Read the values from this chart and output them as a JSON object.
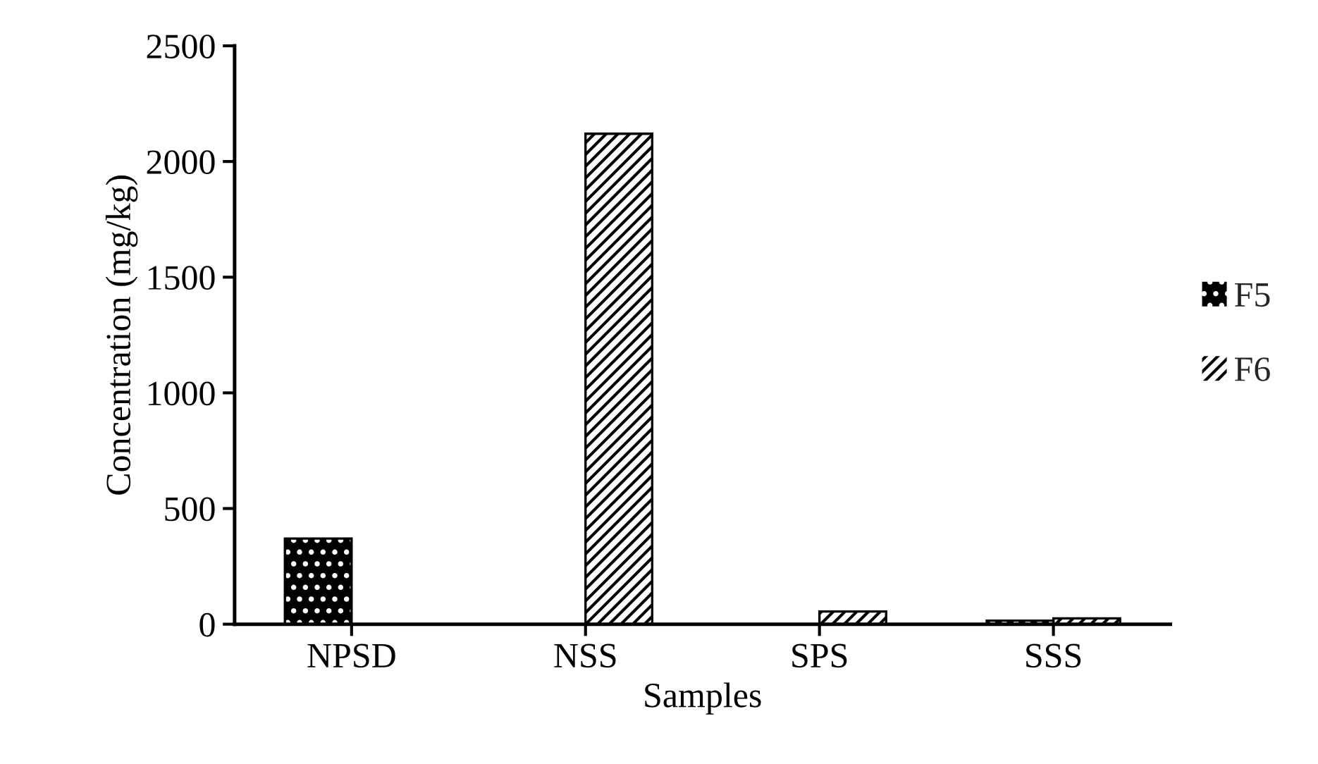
{
  "chart_data": {
    "type": "bar",
    "xlabel": "Samples",
    "ylabel": "Concentration (mg/kg)",
    "categories": [
      "NPSD",
      "NSS",
      "SPS",
      "SSS"
    ],
    "series": [
      {
        "name": "F5",
        "color": "#000000",
        "values": [
          370,
          null,
          null,
          15
        ]
      },
      {
        "name": "F6",
        "color": "#ffffff",
        "values": [
          null,
          2120,
          55,
          25
        ]
      }
    ],
    "ylim": [
      0,
      2500
    ],
    "yticks": [
      0,
      500,
      1000,
      1500,
      2000,
      2500
    ],
    "grid": false,
    "legend": "right"
  }
}
